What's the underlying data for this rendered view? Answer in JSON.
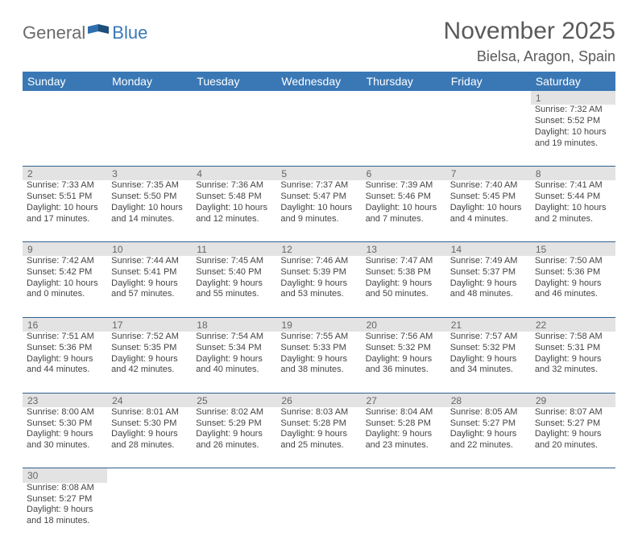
{
  "logo": {
    "part1": "General",
    "part2": "Blue"
  },
  "header": {
    "month_title": "November 2025",
    "location": "Bielsa, Aragon, Spain"
  },
  "colors": {
    "header_bar": "#3a78b5",
    "row_divider": "#2f5f8f",
    "daynum_bg": "#e3e3e3",
    "logo_gray": "#6b6b6b",
    "logo_blue": "#3a78b5",
    "flag_blue": "#2f6fae"
  },
  "weekdays": [
    "Sunday",
    "Monday",
    "Tuesday",
    "Wednesday",
    "Thursday",
    "Friday",
    "Saturday"
  ],
  "weeks": [
    {
      "days": [
        null,
        null,
        null,
        null,
        null,
        null,
        {
          "n": "1",
          "sunrise": "Sunrise: 7:32 AM",
          "sunset": "Sunset: 5:52 PM",
          "daylight1": "Daylight: 10 hours",
          "daylight2": "and 19 minutes."
        }
      ]
    },
    {
      "days": [
        {
          "n": "2",
          "sunrise": "Sunrise: 7:33 AM",
          "sunset": "Sunset: 5:51 PM",
          "daylight1": "Daylight: 10 hours",
          "daylight2": "and 17 minutes."
        },
        {
          "n": "3",
          "sunrise": "Sunrise: 7:35 AM",
          "sunset": "Sunset: 5:50 PM",
          "daylight1": "Daylight: 10 hours",
          "daylight2": "and 14 minutes."
        },
        {
          "n": "4",
          "sunrise": "Sunrise: 7:36 AM",
          "sunset": "Sunset: 5:48 PM",
          "daylight1": "Daylight: 10 hours",
          "daylight2": "and 12 minutes."
        },
        {
          "n": "5",
          "sunrise": "Sunrise: 7:37 AM",
          "sunset": "Sunset: 5:47 PM",
          "daylight1": "Daylight: 10 hours",
          "daylight2": "and 9 minutes."
        },
        {
          "n": "6",
          "sunrise": "Sunrise: 7:39 AM",
          "sunset": "Sunset: 5:46 PM",
          "daylight1": "Daylight: 10 hours",
          "daylight2": "and 7 minutes."
        },
        {
          "n": "7",
          "sunrise": "Sunrise: 7:40 AM",
          "sunset": "Sunset: 5:45 PM",
          "daylight1": "Daylight: 10 hours",
          "daylight2": "and 4 minutes."
        },
        {
          "n": "8",
          "sunrise": "Sunrise: 7:41 AM",
          "sunset": "Sunset: 5:44 PM",
          "daylight1": "Daylight: 10 hours",
          "daylight2": "and 2 minutes."
        }
      ]
    },
    {
      "days": [
        {
          "n": "9",
          "sunrise": "Sunrise: 7:42 AM",
          "sunset": "Sunset: 5:42 PM",
          "daylight1": "Daylight: 10 hours",
          "daylight2": "and 0 minutes."
        },
        {
          "n": "10",
          "sunrise": "Sunrise: 7:44 AM",
          "sunset": "Sunset: 5:41 PM",
          "daylight1": "Daylight: 9 hours",
          "daylight2": "and 57 minutes."
        },
        {
          "n": "11",
          "sunrise": "Sunrise: 7:45 AM",
          "sunset": "Sunset: 5:40 PM",
          "daylight1": "Daylight: 9 hours",
          "daylight2": "and 55 minutes."
        },
        {
          "n": "12",
          "sunrise": "Sunrise: 7:46 AM",
          "sunset": "Sunset: 5:39 PM",
          "daylight1": "Daylight: 9 hours",
          "daylight2": "and 53 minutes."
        },
        {
          "n": "13",
          "sunrise": "Sunrise: 7:47 AM",
          "sunset": "Sunset: 5:38 PM",
          "daylight1": "Daylight: 9 hours",
          "daylight2": "and 50 minutes."
        },
        {
          "n": "14",
          "sunrise": "Sunrise: 7:49 AM",
          "sunset": "Sunset: 5:37 PM",
          "daylight1": "Daylight: 9 hours",
          "daylight2": "and 48 minutes."
        },
        {
          "n": "15",
          "sunrise": "Sunrise: 7:50 AM",
          "sunset": "Sunset: 5:36 PM",
          "daylight1": "Daylight: 9 hours",
          "daylight2": "and 46 minutes."
        }
      ]
    },
    {
      "days": [
        {
          "n": "16",
          "sunrise": "Sunrise: 7:51 AM",
          "sunset": "Sunset: 5:36 PM",
          "daylight1": "Daylight: 9 hours",
          "daylight2": "and 44 minutes."
        },
        {
          "n": "17",
          "sunrise": "Sunrise: 7:52 AM",
          "sunset": "Sunset: 5:35 PM",
          "daylight1": "Daylight: 9 hours",
          "daylight2": "and 42 minutes."
        },
        {
          "n": "18",
          "sunrise": "Sunrise: 7:54 AM",
          "sunset": "Sunset: 5:34 PM",
          "daylight1": "Daylight: 9 hours",
          "daylight2": "and 40 minutes."
        },
        {
          "n": "19",
          "sunrise": "Sunrise: 7:55 AM",
          "sunset": "Sunset: 5:33 PM",
          "daylight1": "Daylight: 9 hours",
          "daylight2": "and 38 minutes."
        },
        {
          "n": "20",
          "sunrise": "Sunrise: 7:56 AM",
          "sunset": "Sunset: 5:32 PM",
          "daylight1": "Daylight: 9 hours",
          "daylight2": "and 36 minutes."
        },
        {
          "n": "21",
          "sunrise": "Sunrise: 7:57 AM",
          "sunset": "Sunset: 5:32 PM",
          "daylight1": "Daylight: 9 hours",
          "daylight2": "and 34 minutes."
        },
        {
          "n": "22",
          "sunrise": "Sunrise: 7:58 AM",
          "sunset": "Sunset: 5:31 PM",
          "daylight1": "Daylight: 9 hours",
          "daylight2": "and 32 minutes."
        }
      ]
    },
    {
      "days": [
        {
          "n": "23",
          "sunrise": "Sunrise: 8:00 AM",
          "sunset": "Sunset: 5:30 PM",
          "daylight1": "Daylight: 9 hours",
          "daylight2": "and 30 minutes."
        },
        {
          "n": "24",
          "sunrise": "Sunrise: 8:01 AM",
          "sunset": "Sunset: 5:30 PM",
          "daylight1": "Daylight: 9 hours",
          "daylight2": "and 28 minutes."
        },
        {
          "n": "25",
          "sunrise": "Sunrise: 8:02 AM",
          "sunset": "Sunset: 5:29 PM",
          "daylight1": "Daylight: 9 hours",
          "daylight2": "and 26 minutes."
        },
        {
          "n": "26",
          "sunrise": "Sunrise: 8:03 AM",
          "sunset": "Sunset: 5:28 PM",
          "daylight1": "Daylight: 9 hours",
          "daylight2": "and 25 minutes."
        },
        {
          "n": "27",
          "sunrise": "Sunrise: 8:04 AM",
          "sunset": "Sunset: 5:28 PM",
          "daylight1": "Daylight: 9 hours",
          "daylight2": "and 23 minutes."
        },
        {
          "n": "28",
          "sunrise": "Sunrise: 8:05 AM",
          "sunset": "Sunset: 5:27 PM",
          "daylight1": "Daylight: 9 hours",
          "daylight2": "and 22 minutes."
        },
        {
          "n": "29",
          "sunrise": "Sunrise: 8:07 AM",
          "sunset": "Sunset: 5:27 PM",
          "daylight1": "Daylight: 9 hours",
          "daylight2": "and 20 minutes."
        }
      ]
    },
    {
      "days": [
        {
          "n": "30",
          "sunrise": "Sunrise: 8:08 AM",
          "sunset": "Sunset: 5:27 PM",
          "daylight1": "Daylight: 9 hours",
          "daylight2": "and 18 minutes."
        },
        null,
        null,
        null,
        null,
        null,
        null
      ]
    }
  ]
}
